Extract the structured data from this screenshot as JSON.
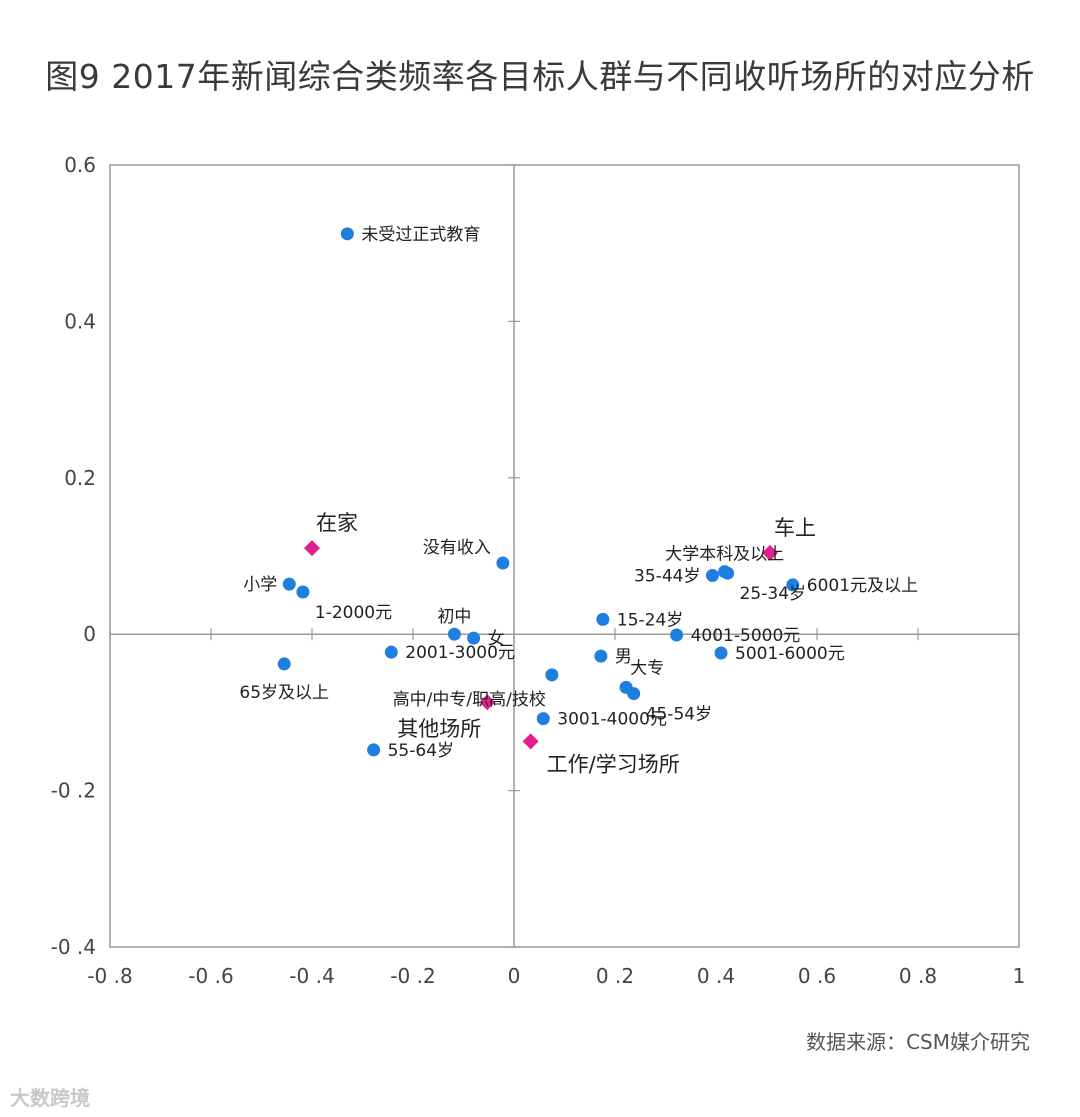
{
  "chart_data": {
    "type": "scatter",
    "title": "图9 2017年新闻综合类频率各目标人群与不同收听场所的对应分析",
    "xlim": [
      -0.8,
      1
    ],
    "ylim": [
      -0.4,
      0.6
    ],
    "x_ticks": [
      -0.8,
      -0.6,
      -0.4,
      -0.2,
      0,
      0.2,
      0.4,
      0.6,
      0.8,
      1
    ],
    "x_tick_labels": [
      "-0 .8",
      "-0 .6",
      "-0 .4",
      "-0 .2",
      "0",
      "0 .2",
      "0 .4",
      "0 .6",
      "0 .8",
      "1"
    ],
    "y_ticks": [
      0.6,
      0.4,
      0.2,
      0,
      -0.2,
      -0.4
    ],
    "y_tick_labels": [
      "0.6",
      "0.4",
      "0.2",
      "0",
      "-0 .2",
      "-0 .4"
    ],
    "series": [
      {
        "name": "目标人群",
        "marker": "circle",
        "color": "#1e7fe0",
        "points": [
          {
            "label": "未受过正式教育",
            "x": -0.33,
            "y": 0.512,
            "anchor": "right"
          },
          {
            "label": "没有收入",
            "x": -0.022,
            "y": 0.091,
            "anchor": "above-left"
          },
          {
            "label": "小学",
            "x": -0.445,
            "y": 0.064,
            "anchor": "left"
          },
          {
            "label": "1-2000元",
            "x": -0.418,
            "y": 0.054,
            "anchor": "below-right"
          },
          {
            "label": "初中",
            "x": -0.118,
            "y": 0.0,
            "anchor": "above"
          },
          {
            "label": "女",
            "x": -0.08,
            "y": -0.005,
            "anchor": "right"
          },
          {
            "label": "2001-3000元",
            "x": -0.243,
            "y": -0.023,
            "anchor": "right"
          },
          {
            "label": "高中/中专/职高/技校",
            "x": 0.075,
            "y": -0.052,
            "anchor": "below-left"
          },
          {
            "label": "65岁及以上",
            "x": -0.455,
            "y": -0.038,
            "anchor": "below"
          },
          {
            "label": "55-64岁",
            "x": -0.278,
            "y": -0.148,
            "anchor": "right"
          },
          {
            "label": "3001-4000元",
            "x": 0.058,
            "y": -0.108,
            "anchor": "right"
          },
          {
            "label": "男",
            "x": 0.172,
            "y": -0.028,
            "anchor": "right"
          },
          {
            "label": "15-24岁",
            "x": 0.176,
            "y": 0.019,
            "anchor": "right"
          },
          {
            "label": "大专",
            "x": 0.222,
            "y": -0.068,
            "anchor": "above-right"
          },
          {
            "label": "45-54岁",
            "x": 0.237,
            "y": -0.076,
            "anchor": "below-right"
          },
          {
            "label": "4001-5000元",
            "x": 0.322,
            "y": -0.001,
            "anchor": "right"
          },
          {
            "label": "5001-6000元",
            "x": 0.41,
            "y": -0.024,
            "anchor": "right"
          },
          {
            "label": "大学本科及以上",
            "x": 0.417,
            "y": 0.08,
            "anchor": "above"
          },
          {
            "label": "35-44岁",
            "x": 0.393,
            "y": 0.075,
            "anchor": "left"
          },
          {
            "label": "25-34岁",
            "x": 0.423,
            "y": 0.078,
            "anchor": "below-right"
          },
          {
            "label": "6001元及以上",
            "x": 0.552,
            "y": 0.063,
            "anchor": "right"
          }
        ]
      },
      {
        "name": "收听场所",
        "marker": "diamond",
        "color": "#e0208c",
        "points": [
          {
            "label": "在家",
            "x": -0.4,
            "y": 0.11,
            "anchor": "above-right"
          },
          {
            "label": "车上",
            "x": 0.507,
            "y": 0.104,
            "anchor": "above-right"
          },
          {
            "label": "其他场所",
            "x": -0.053,
            "y": -0.087,
            "anchor": "below-left"
          },
          {
            "label": "工作/学习场所",
            "x": 0.033,
            "y": -0.137,
            "anchor": "below-right"
          }
        ]
      }
    ],
    "source": "数据来源：CSM媒介研究"
  },
  "watermark": "大数跨境"
}
